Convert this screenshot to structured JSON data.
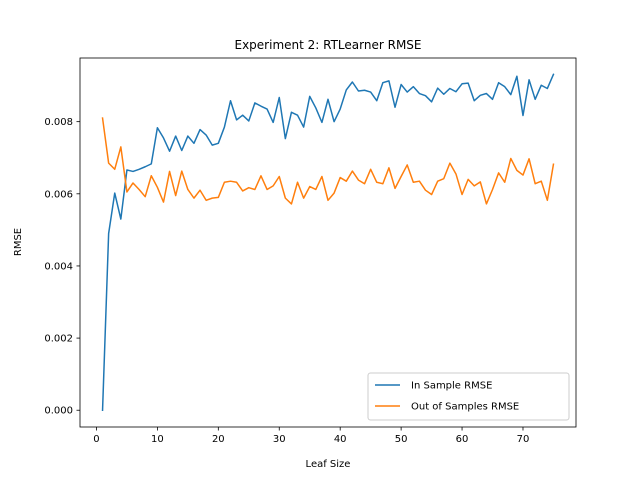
{
  "chart_data": {
    "type": "line",
    "title": "Experiment 2: RTLearner RMSE",
    "xlabel": "Leaf Size",
    "ylabel": "RMSE",
    "xlim": [
      -2.7,
      78.7
    ],
    "ylim": [
      -0.000465,
      0.009765
    ],
    "x_ticks": [
      0,
      10,
      20,
      30,
      40,
      50,
      60,
      70
    ],
    "x_tick_labels": [
      "0",
      "10",
      "20",
      "30",
      "40",
      "50",
      "60",
      "70"
    ],
    "y_ticks": [
      0,
      0.002,
      0.004,
      0.006,
      0.008
    ],
    "y_tick_labels": [
      "0.000",
      "0.002",
      "0.004",
      "0.006",
      "0.008"
    ],
    "legend_position": "lower-right",
    "grid": false,
    "x": [
      1,
      2,
      3,
      4,
      5,
      6,
      7,
      8,
      9,
      10,
      11,
      12,
      13,
      14,
      15,
      16,
      17,
      18,
      19,
      20,
      21,
      22,
      23,
      24,
      25,
      26,
      27,
      28,
      29,
      30,
      31,
      32,
      33,
      34,
      35,
      36,
      37,
      38,
      39,
      40,
      41,
      42,
      43,
      44,
      45,
      46,
      47,
      48,
      49,
      50,
      51,
      52,
      53,
      54,
      55,
      56,
      57,
      58,
      59,
      60,
      61,
      62,
      63,
      64,
      65,
      66,
      67,
      68,
      69,
      70,
      71,
      72,
      73,
      74,
      75
    ],
    "series": [
      {
        "name": "In Sample RMSE",
        "color": "#1f77b4",
        "values": [
          0.0,
          0.0049,
          0.00602,
          0.0053,
          0.00666,
          0.00662,
          0.00668,
          0.00675,
          0.00683,
          0.00783,
          0.00755,
          0.00718,
          0.0076,
          0.0072,
          0.0076,
          0.0074,
          0.00778,
          0.00763,
          0.00735,
          0.0074,
          0.00785,
          0.00858,
          0.00805,
          0.00818,
          0.00802,
          0.00852,
          0.00843,
          0.00835,
          0.00798,
          0.00867,
          0.00753,
          0.00826,
          0.00818,
          0.00785,
          0.0087,
          0.00838,
          0.00798,
          0.00862,
          0.008,
          0.00835,
          0.00888,
          0.0091,
          0.00885,
          0.00887,
          0.00882,
          0.00858,
          0.00908,
          0.00913,
          0.0084,
          0.00903,
          0.00882,
          0.00897,
          0.00878,
          0.00872,
          0.00855,
          0.00893,
          0.00876,
          0.00892,
          0.00883,
          0.00905,
          0.00907,
          0.00858,
          0.00873,
          0.00878,
          0.00862,
          0.00908,
          0.00897,
          0.00875,
          0.00926,
          0.00817,
          0.00916,
          0.00862,
          0.00901,
          0.00892,
          0.00931
        ]
      },
      {
        "name": "Out of Samples RMSE",
        "color": "#ff7f0e",
        "values": [
          0.0081,
          0.00685,
          0.00668,
          0.0073,
          0.00605,
          0.0063,
          0.00612,
          0.00592,
          0.0065,
          0.00618,
          0.00577,
          0.00662,
          0.00595,
          0.00663,
          0.00612,
          0.00588,
          0.0061,
          0.00582,
          0.00588,
          0.0059,
          0.00632,
          0.00635,
          0.00632,
          0.00608,
          0.00617,
          0.00612,
          0.0065,
          0.00612,
          0.00622,
          0.00648,
          0.00588,
          0.00572,
          0.00632,
          0.00588,
          0.0062,
          0.00612,
          0.00648,
          0.00582,
          0.00602,
          0.00645,
          0.00635,
          0.00663,
          0.00638,
          0.00628,
          0.00668,
          0.00632,
          0.00628,
          0.00672,
          0.00615,
          0.00648,
          0.0068,
          0.00632,
          0.00635,
          0.0061,
          0.00598,
          0.00635,
          0.00642,
          0.00685,
          0.00655,
          0.00598,
          0.0064,
          0.00622,
          0.00633,
          0.00572,
          0.00612,
          0.00658,
          0.00632,
          0.00698,
          0.00665,
          0.00652,
          0.00697,
          0.00628,
          0.00635,
          0.00582,
          0.00682
        ]
      }
    ]
  }
}
